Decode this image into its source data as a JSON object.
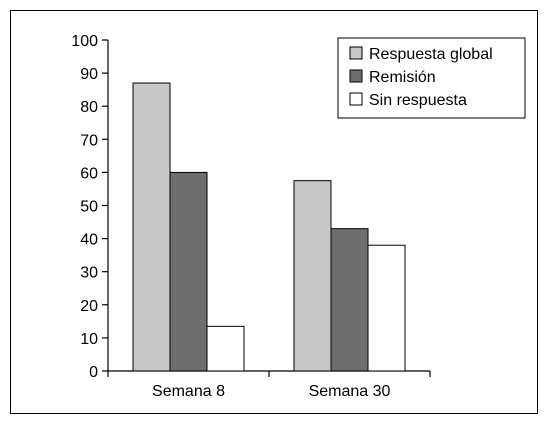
{
  "chart_data": {
    "type": "bar",
    "categories": [
      "Semana 8",
      "Semana 30"
    ],
    "series": [
      {
        "name": "Respuesta global",
        "values": [
          87,
          57.5
        ],
        "color": "#c8c8c8"
      },
      {
        "name": "Remisión",
        "values": [
          60,
          43
        ],
        "color": "#6e6e6e"
      },
      {
        "name": "Sin respuesta",
        "values": [
          13.5,
          38
        ],
        "color": "#ffffff"
      }
    ],
    "ylim": [
      0,
      100
    ],
    "yticks": [
      0,
      10,
      20,
      30,
      40,
      50,
      60,
      70,
      80,
      90,
      100
    ],
    "legend_position": "top-right",
    "grid": false,
    "title": "",
    "xlabel": "",
    "ylabel": ""
  }
}
